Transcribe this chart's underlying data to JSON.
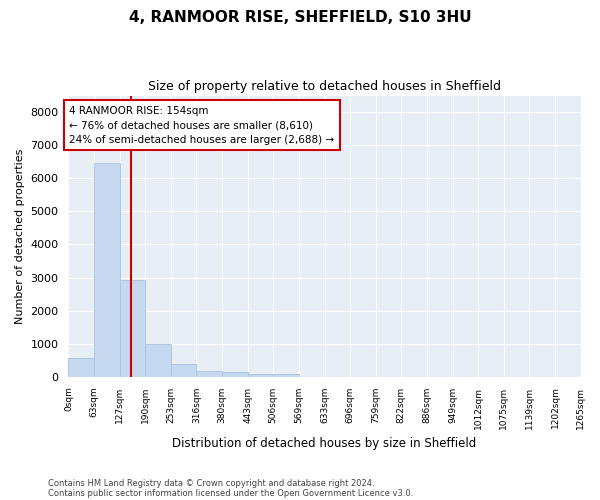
{
  "title": "4, RANMOOR RISE, SHEFFIELD, S10 3HU",
  "subtitle": "Size of property relative to detached houses in Sheffield",
  "xlabel": "Distribution of detached houses by size in Sheffield",
  "ylabel": "Number of detached properties",
  "bar_edges": [
    0,
    63,
    127,
    190,
    253,
    316,
    380,
    443,
    506,
    569,
    633,
    696,
    759,
    822,
    886,
    949,
    1012,
    1075,
    1139,
    1202,
    1265
  ],
  "bar_heights": [
    580,
    6450,
    2930,
    980,
    380,
    190,
    140,
    90,
    100,
    0,
    0,
    0,
    0,
    0,
    0,
    0,
    0,
    0,
    0,
    0
  ],
  "bar_color": "#c5d8ef",
  "bar_edgecolor": "#a8c4e0",
  "vline_x": 154,
  "vline_color": "#cc0000",
  "annotation_title": "4 RANMOOR RISE: 154sqm",
  "annotation_line1": "← 76% of detached houses are smaller (8,610)",
  "annotation_line2": "24% of semi-detached houses are larger (2,688) →",
  "annotation_box_edgecolor": "#cc0000",
  "annotation_box_facecolor": "white",
  "ylim": [
    0,
    8500
  ],
  "yticks": [
    0,
    1000,
    2000,
    3000,
    4000,
    5000,
    6000,
    7000,
    8000
  ],
  "footer_line1": "Contains HM Land Registry data © Crown copyright and database right 2024.",
  "footer_line2": "Contains public sector information licensed under the Open Government Licence v3.0.",
  "background_color": "#e8eef5"
}
